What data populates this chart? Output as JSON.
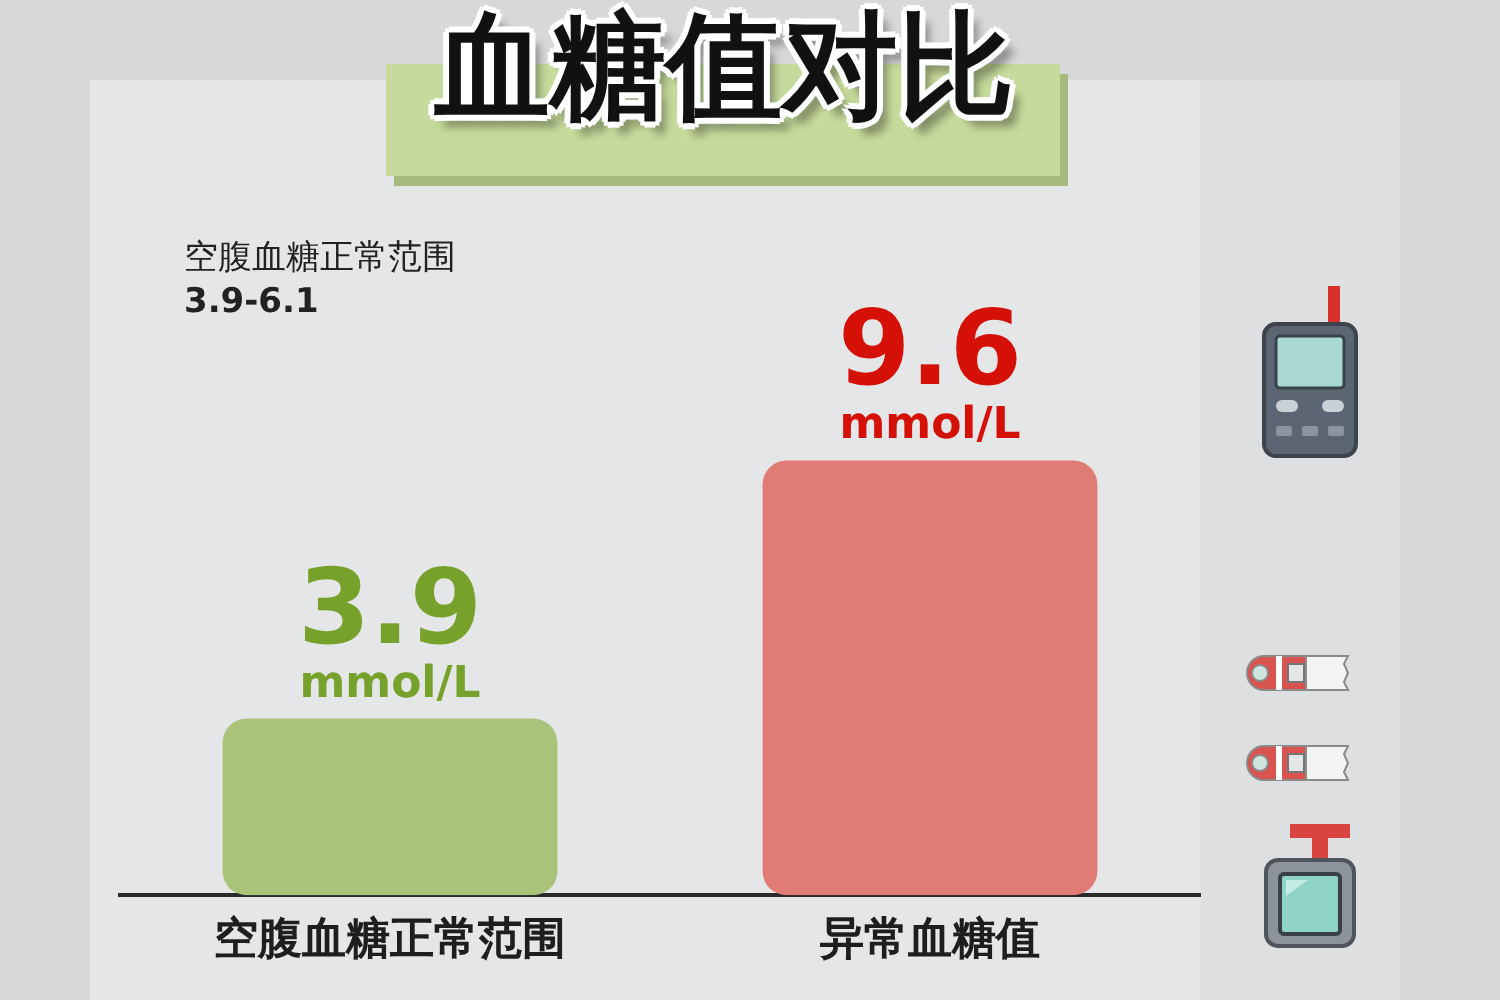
{
  "chart_data": {
    "type": "bar",
    "title": "血糖值对比",
    "categories": [
      "空腹血糖正常范围",
      "异常血糖值"
    ],
    "values": [
      3.9,
      9.6
    ],
    "colors": [
      "#a9c47a",
      "#e07b76"
    ],
    "data_labels": true,
    "annotations": [
      "空腹血糖正常范围",
      "3.9-6.1",
      {
        "text": "mmol/L",
        "x": "空腹血糖正常范围",
        "y": 3.9
      },
      {
        "text": "mmol/L",
        "x": "异常血糖值",
        "y": 9.6
      }
    ]
  }
}
